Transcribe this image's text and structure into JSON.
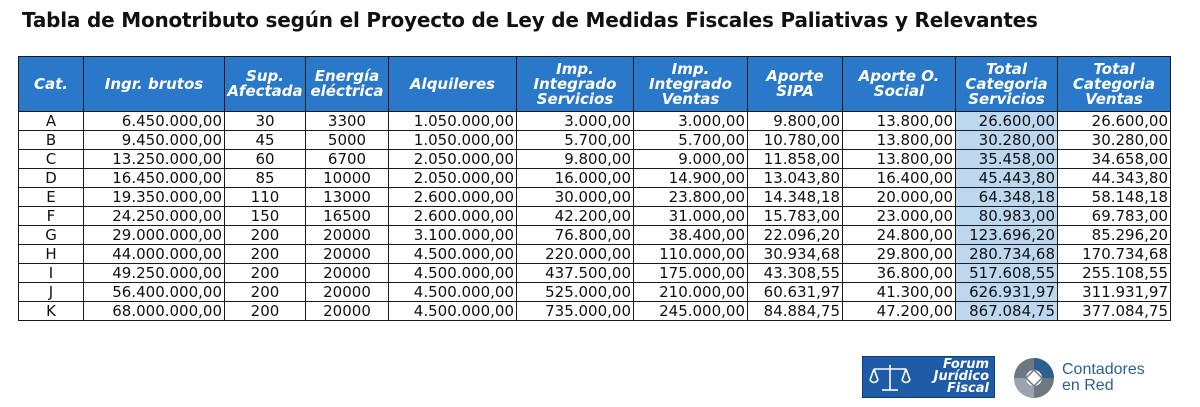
{
  "title": "Tabla de Monotributo según el Proyecto de Ley de Medidas Fiscales Paliativas y Relevantes",
  "table": {
    "headers": [
      [
        "Cat."
      ],
      [
        "Ingr. brutos"
      ],
      [
        "Sup.",
        "Afectada"
      ],
      [
        "Energía",
        "eléctrica"
      ],
      [
        "Alquileres"
      ],
      [
        "Imp.",
        "Integrado",
        "Servicios"
      ],
      [
        "Imp.",
        "Integrado",
        "Ventas"
      ],
      [
        "Aporte",
        "SIPA"
      ],
      [
        "Aporte O.",
        "Social"
      ],
      [
        "Total",
        "Categoria",
        "Servicios"
      ],
      [
        "Total",
        "Categoria",
        "Ventas"
      ]
    ],
    "rows": [
      [
        "A",
        "6.450.000,00",
        "30",
        "3300",
        "1.050.000,00",
        "3.000,00",
        "3.000,00",
        "9.800,00",
        "13.800,00",
        "26.600,00",
        "26.600,00"
      ],
      [
        "B",
        "9.450.000,00",
        "45",
        "5000",
        "1.050.000,00",
        "5.700,00",
        "5.700,00",
        "10.780,00",
        "13.800,00",
        "30.280,00",
        "30.280,00"
      ],
      [
        "C",
        "13.250.000,00",
        "60",
        "6700",
        "2.050.000,00",
        "9.800,00",
        "9.000,00",
        "11.858,00",
        "13.800,00",
        "35.458,00",
        "34.658,00"
      ],
      [
        "D",
        "16.450.000,00",
        "85",
        "10000",
        "2.050.000,00",
        "16.000,00",
        "14.900,00",
        "13.043,80",
        "16.400,00",
        "45.443,80",
        "44.343,80"
      ],
      [
        "E",
        "19.350.000,00",
        "110",
        "13000",
        "2.600.000,00",
        "30.000,00",
        "23.800,00",
        "14.348,18",
        "20.000,00",
        "64.348,18",
        "58.148,18"
      ],
      [
        "F",
        "24.250.000,00",
        "150",
        "16500",
        "2.600.000,00",
        "42.200,00",
        "31.000,00",
        "15.783,00",
        "23.000,00",
        "80.983,00",
        "69.783,00"
      ],
      [
        "G",
        "29.000.000,00",
        "200",
        "20000",
        "3.100.000,00",
        "76.800,00",
        "38.400,00",
        "22.096,20",
        "24.800,00",
        "123.696,20",
        "85.296,20"
      ],
      [
        "H",
        "44.000.000,00",
        "200",
        "20000",
        "4.500.000,00",
        "220.000,00",
        "110.000,00",
        "30.934,68",
        "29.800,00",
        "280.734,68",
        "170.734,68"
      ],
      [
        "I",
        "49.250.000,00",
        "200",
        "20000",
        "4.500.000,00",
        "437.500,00",
        "175.000,00",
        "43.308,55",
        "36.800,00",
        "517.608,55",
        "255.108,55"
      ],
      [
        "J",
        "56.400.000,00",
        "200",
        "20000",
        "4.500.000,00",
        "525.000,00",
        "210.000,00",
        "60.631,97",
        "41.300,00",
        "626.931,97",
        "311.931,97"
      ],
      [
        "K",
        "68.000.000,00",
        "200",
        "20000",
        "4.500.000,00",
        "735.000,00",
        "245.000,00",
        "84.884,75",
        "47.200,00",
        "867.084,75",
        "377.084,75"
      ]
    ]
  },
  "logos": {
    "forum": {
      "lines": [
        "Forum",
        "Jurídico",
        "Fiscal"
      ],
      "icon": "scales-of-justice-icon",
      "color": "#1f5ca8"
    },
    "contadores": {
      "lines": [
        "Contadores",
        "en Red"
      ],
      "icon": "camera-aperture-icon",
      "color": "#2d5f92"
    }
  },
  "colors": {
    "header": "#2a78c9",
    "highlight": "#bdd7ee"
  }
}
